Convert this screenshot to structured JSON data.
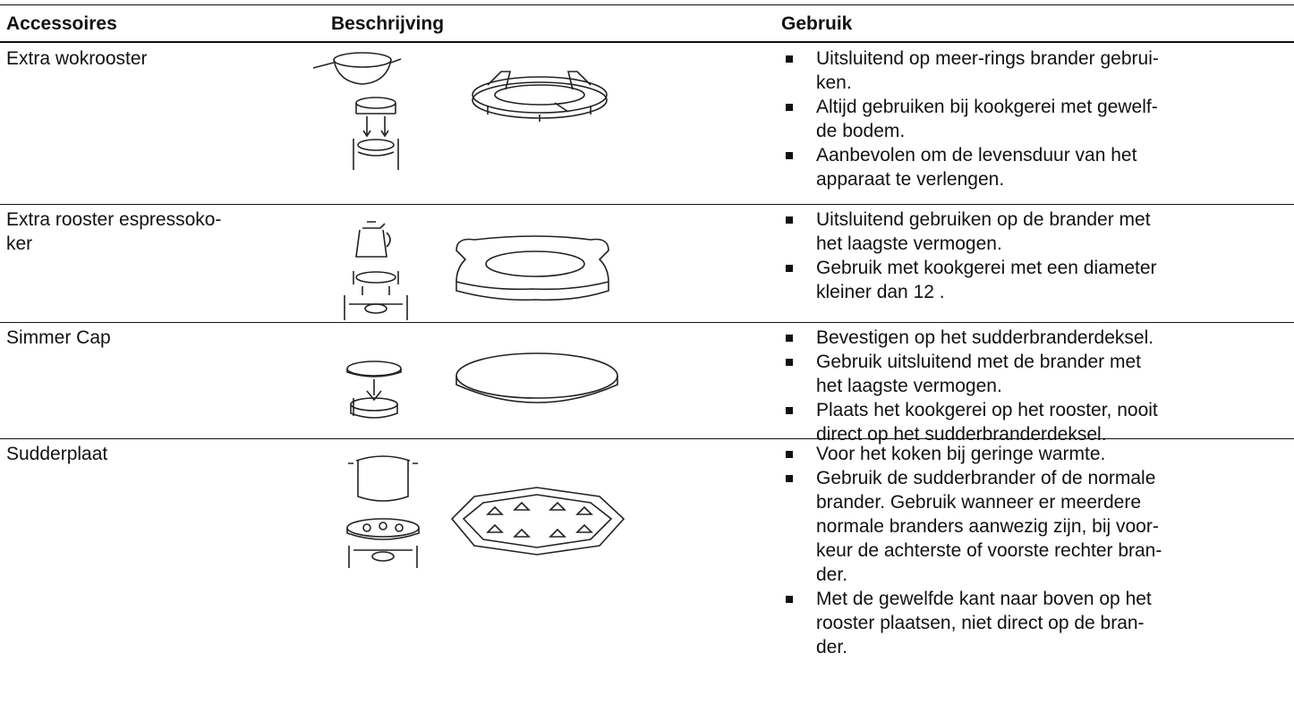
{
  "table": {
    "header": [
      "Accessoires",
      "Beschrijving",
      "Gebruik"
    ],
    "rows": [
      {
        "accessory": [
          "Extra wokrooster"
        ],
        "usage": [
          [
            "Uitsluitend op meer-rings brander gebrui-",
            "ken."
          ],
          [
            "Altijd gebruiken bij kookgerei met gewelf-",
            "de bodem."
          ],
          [
            "Aanbevolen om de levensduur van het",
            "apparaat te verlengen."
          ]
        ]
      },
      {
        "accessory": [
          "Extra rooster espressoko-",
          "ker"
        ],
        "usage": [
          [
            "Uitsluitend gebruiken op de brander met",
            "het laagste vermogen."
          ],
          [
            "Gebruik met kookgerei met een diameter",
            "kleiner dan 12 ."
          ]
        ]
      },
      {
        "accessory": [
          "Simmer Cap"
        ],
        "usage": [
          [
            "Bevestigen op het sudderbranderdeksel."
          ],
          [
            "Gebruik uitsluitend met de brander met",
            "het laagste vermogen."
          ],
          [
            "Plaats het kookgerei op het rooster, nooit",
            "direct op het sudderbranderdeksel."
          ]
        ]
      },
      {
        "accessory": [
          "Sudderplaat"
        ],
        "usage": [
          [
            "Voor het koken bij geringe warmte."
          ],
          [
            "Gebruik de sudderbrander of de normale",
            "brander. Gebruik wanneer er meerdere",
            "normale branders aanwezig zijn, bij voor-",
            "keur de achterste of voorste rechter bran-",
            "der."
          ],
          [
            "Met de gewelfde kant naar boven op het",
            "rooster plaatsen, niet direct op de bran-",
            "der."
          ]
        ]
      }
    ]
  }
}
